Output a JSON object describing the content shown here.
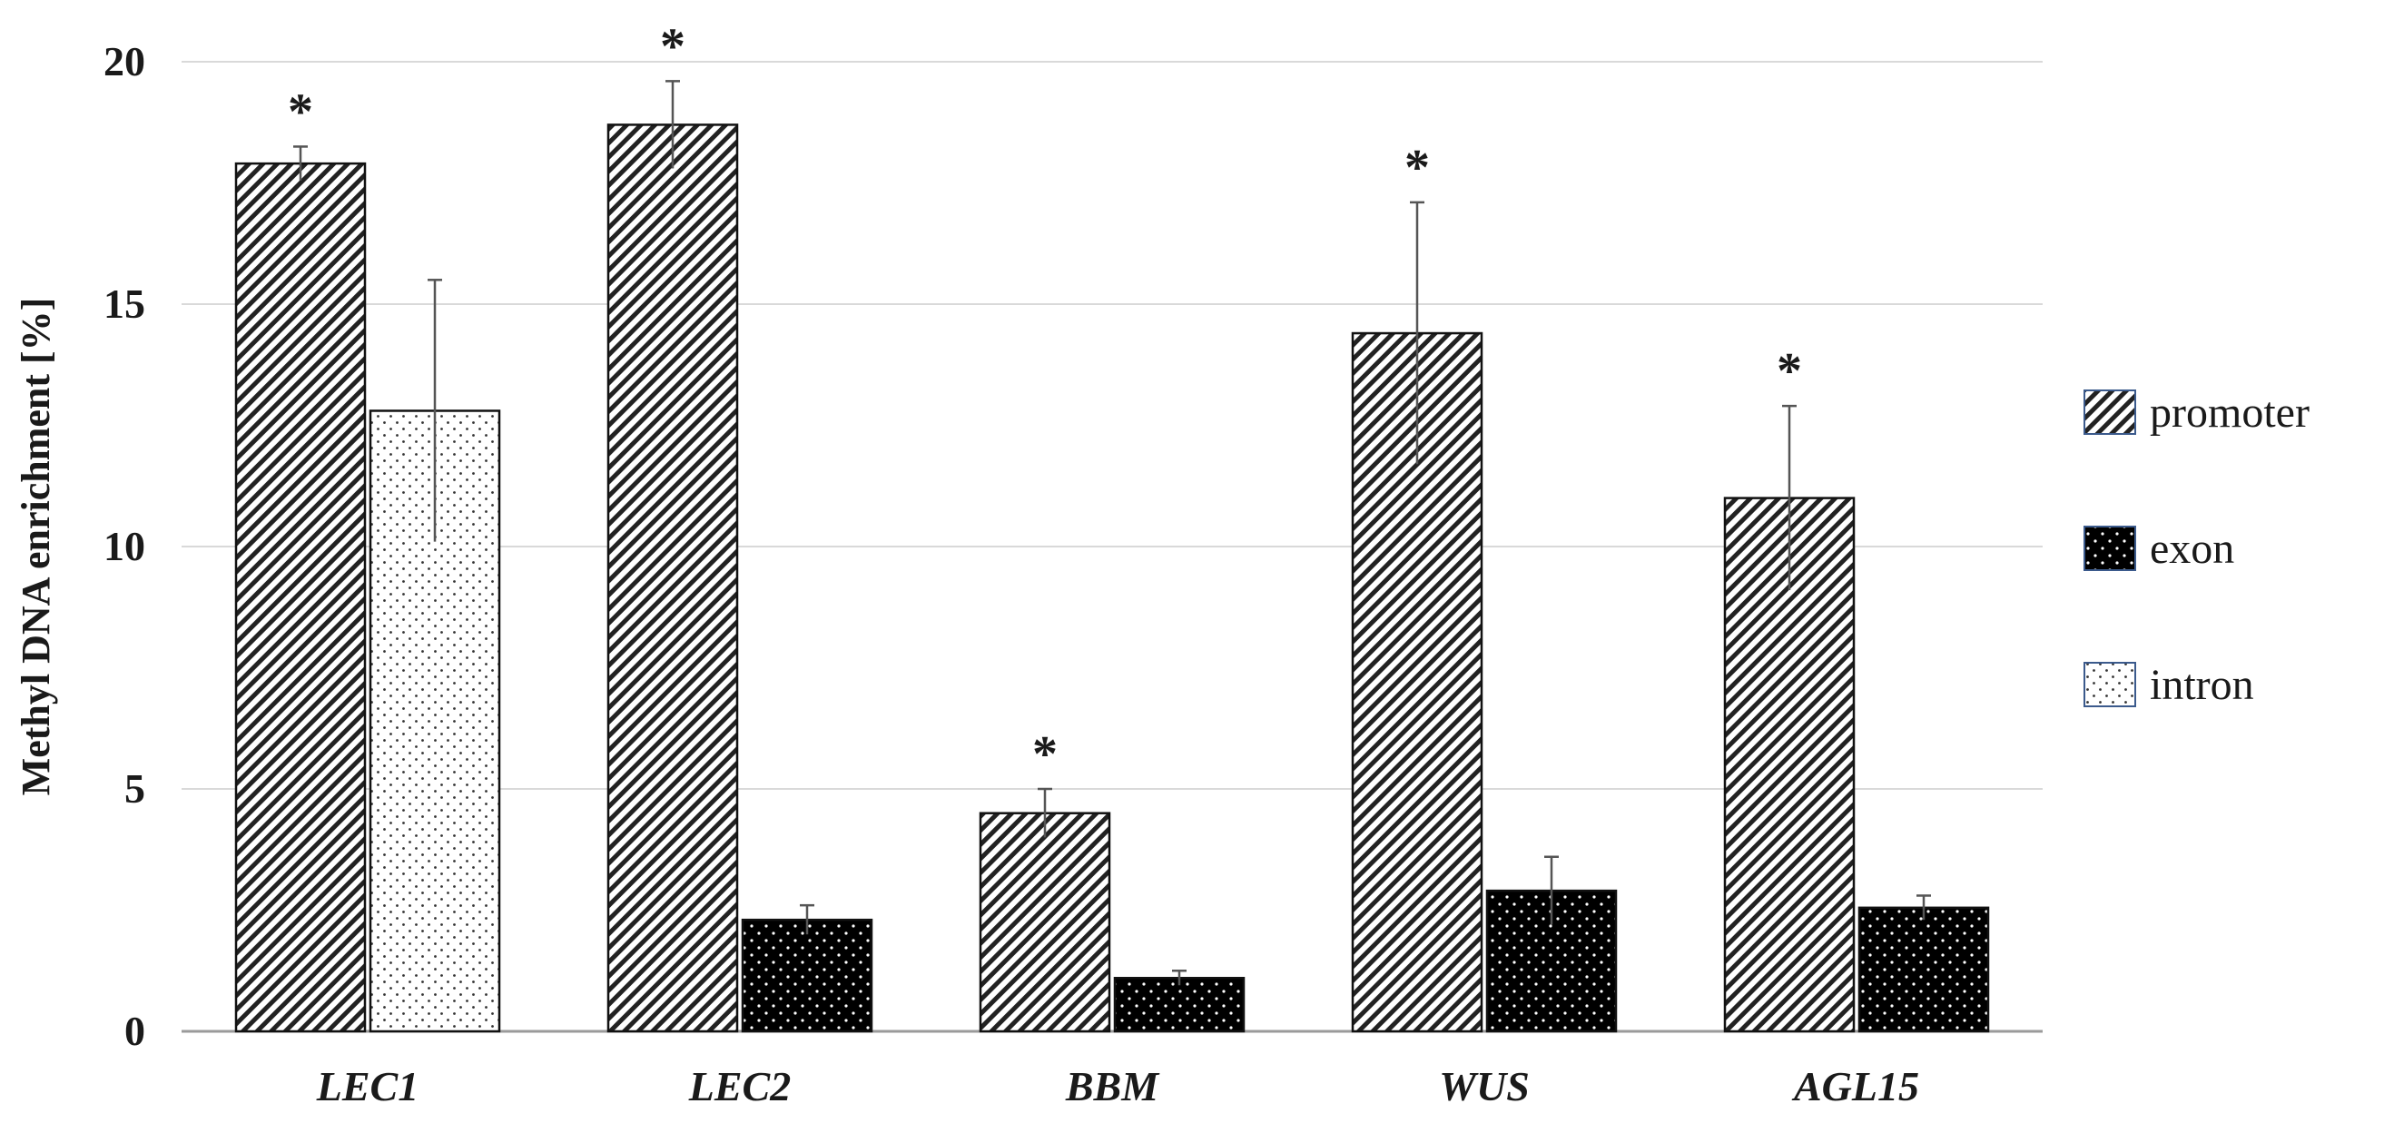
{
  "chart_data": {
    "type": "bar",
    "ylabel": "Methyl DNA enrichment [%]",
    "ylim": [
      0,
      20
    ],
    "yticks": [
      0,
      5,
      10,
      15,
      20
    ],
    "grid": true,
    "legend_position": "right",
    "categories": [
      "LEC1",
      "LEC2",
      "BBM",
      "WUS",
      "AGL15"
    ],
    "series": [
      {
        "name": "promoter",
        "pattern": "diagonal-hatch",
        "values": [
          17.9,
          18.7,
          4.5,
          14.4,
          11.0
        ],
        "errors": [
          0.35,
          0.9,
          0.5,
          2.7,
          1.9
        ],
        "significant": [
          true,
          true,
          true,
          true,
          true
        ]
      },
      {
        "name": "exon",
        "pattern": "black-dotted",
        "values": [
          null,
          2.3,
          1.1,
          2.9,
          2.55
        ],
        "errors": [
          null,
          0.3,
          0.15,
          0.7,
          0.25
        ],
        "significant": [
          false,
          false,
          false,
          false,
          false
        ]
      },
      {
        "name": "intron",
        "pattern": "white-dotted",
        "values": [
          12.8,
          null,
          null,
          null,
          null
        ],
        "errors": [
          2.7,
          null,
          null,
          null,
          null
        ],
        "significant": [
          false,
          false,
          false,
          false,
          false
        ]
      }
    ],
    "significance_marker": "*"
  }
}
